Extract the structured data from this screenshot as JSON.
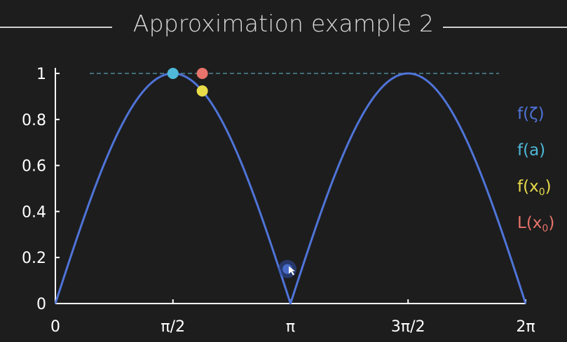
{
  "title": "Approximation example 2",
  "chart_data": {
    "type": "line",
    "title": "Approximation example 2",
    "xlabel": "",
    "ylabel": "",
    "xlim": [
      0,
      6.2832
    ],
    "ylim": [
      0,
      1
    ],
    "x_ticks": [
      "0",
      "π/2",
      "π",
      "3π/2",
      "2π"
    ],
    "y_ticks": [
      "0",
      "0.2",
      "0.4",
      "0.6",
      "0.8",
      "1"
    ],
    "series": [
      {
        "name": "f(ζ)",
        "function": "|sin(x)|",
        "color": "#4f74d8"
      }
    ],
    "reference_line": {
      "y": 1,
      "style": "dashed",
      "color": "#4e8a99"
    },
    "points": [
      {
        "name": "f(a)",
        "x": 1.5708,
        "y": 1.0,
        "color": "#4fb8d8"
      },
      {
        "name": "L(x0)",
        "x": 1.963,
        "y": 1.0,
        "color": "#e8736a"
      },
      {
        "name": "f(x0)",
        "x": 1.963,
        "y": 0.924,
        "color": "#e9dc4a"
      }
    ],
    "cursor": {
      "x": 3.1,
      "y": 0.15
    },
    "legend": {
      "position": "right",
      "entries": [
        {
          "pre": "f(ζ)",
          "sub": "",
          "post": "",
          "color": "#4f74d8"
        },
        {
          "pre": "f(a)",
          "sub": "",
          "post": "",
          "color": "#4fb8d8"
        },
        {
          "pre": "f(x",
          "sub": "0",
          "post": ")",
          "color": "#e9dc4a"
        },
        {
          "pre": "L(x",
          "sub": "0",
          "post": ")",
          "color": "#e8736a"
        }
      ]
    }
  }
}
